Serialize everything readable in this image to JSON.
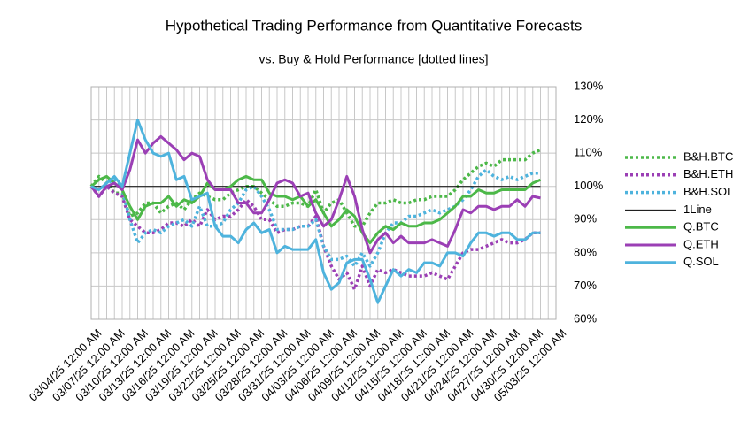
{
  "chart_data": {
    "type": "line",
    "title": "Hypothetical Trading Performance from Quantitative Forecasts",
    "subtitle": "vs. Buy & Hold Performance [dotted lines]",
    "categories": [
      "03/04/25 12:00 AM",
      null,
      null,
      "03/07/25 12:00 AM",
      null,
      null,
      "03/10/25 12:00 AM",
      null,
      null,
      "03/13/25 12:00 AM",
      null,
      null,
      "03/16/25 12:00 AM",
      null,
      null,
      "03/19/25 12:00 AM",
      null,
      null,
      "03/22/25 12:00 AM",
      null,
      null,
      "03/25/25 12:00 AM",
      null,
      null,
      "03/28/25 12:00 AM",
      null,
      null,
      "03/31/25 12:00 AM",
      null,
      null,
      "04/03/25 12:00 AM",
      null,
      null,
      "04/06/25 12:00 AM",
      null,
      null,
      "04/09/25 12:00 AM",
      null,
      null,
      "04/12/25 12:00 AM",
      null,
      null,
      "04/15/25 12:00 AM",
      null,
      null,
      "04/18/25 12:00 AM",
      null,
      null,
      "04/21/25 12:00 AM",
      null,
      null,
      "04/24/25 12:00 AM",
      null,
      null,
      "04/27/25 12:00 AM",
      null,
      null,
      "04/30/25 12:00 AM",
      null,
      null,
      "05/03/25 12:00 AM"
    ],
    "series": [
      {
        "name": "B&H.BTC",
        "color": "#4cb848",
        "style": "dotted",
        "values": [
          100,
          103,
          101,
          98,
          98,
          91,
          92,
          95,
          95,
          92,
          94,
          95,
          93,
          96,
          98,
          97,
          96,
          96,
          98,
          99,
          100,
          100,
          98,
          96,
          94,
          94,
          95,
          95,
          94,
          99,
          92,
          95,
          96,
          92,
          88,
          88,
          92,
          95,
          95,
          96,
          95,
          95,
          96,
          96,
          97,
          97,
          97,
          99,
          102,
          104,
          106,
          107,
          106,
          108,
          108,
          108,
          108,
          110,
          111,
          null,
          null
        ]
      },
      {
        "name": "B&H.ETH",
        "color": "#9b3fb5",
        "style": "dotted",
        "values": [
          100,
          97,
          100,
          98,
          97,
          90,
          88,
          86,
          86,
          87,
          89,
          89,
          88,
          90,
          88,
          93,
          90,
          91,
          91,
          93,
          96,
          94,
          90,
          90,
          86,
          87,
          87,
          88,
          88,
          91,
          82,
          76,
          72,
          74,
          69,
          76,
          70,
          75,
          74,
          75,
          74,
          73,
          73,
          73,
          74,
          73,
          72,
          76,
          80,
          81,
          81,
          82,
          83,
          84,
          83,
          83,
          84,
          86,
          86,
          null,
          null
        ]
      },
      {
        "name": "B&H.SOL",
        "color": "#4eb3dd",
        "style": "dotted",
        "values": [
          100,
          99,
          101,
          102,
          99,
          90,
          83,
          86,
          87,
          86,
          88,
          89,
          90,
          88,
          94,
          88,
          88,
          89,
          93,
          95,
          99,
          100,
          97,
          93,
          87,
          87,
          87,
          88,
          88,
          90,
          82,
          78,
          78,
          79,
          76,
          80,
          76,
          80,
          86,
          89,
          89,
          91,
          91,
          92,
          93,
          92,
          93,
          94,
          96,
          99,
          103,
          105,
          103,
          102,
          103,
          102,
          103,
          104,
          104,
          null,
          null
        ]
      },
      {
        "name": "1Line",
        "color": "#000000",
        "style": "thin",
        "values": [
          100,
          100,
          100,
          100,
          100,
          100,
          100,
          100,
          100,
          100,
          100,
          100,
          100,
          100,
          100,
          100,
          100,
          100,
          100,
          100,
          100,
          100,
          100,
          100,
          100,
          100,
          100,
          100,
          100,
          100,
          100,
          100,
          100,
          100,
          100,
          100,
          100,
          100,
          100,
          100,
          100,
          100,
          100,
          100,
          100,
          100,
          100,
          100,
          100,
          100,
          100,
          100,
          100,
          100,
          100,
          100,
          100,
          100,
          100,
          null,
          null
        ]
      },
      {
        "name": "Q.BTC",
        "color": "#4cb848",
        "style": "solid",
        "values": [
          100,
          102,
          103,
          101,
          99,
          94,
          90,
          94,
          95,
          95,
          97,
          94,
          96,
          95,
          97,
          101,
          99,
          99,
          100,
          102,
          103,
          102,
          102,
          98,
          97,
          97,
          96,
          97,
          94,
          96,
          92,
          88,
          90,
          93,
          91,
          86,
          83,
          86,
          88,
          87,
          89,
          88,
          88,
          89,
          89,
          90,
          92,
          94,
          97,
          97,
          99,
          98,
          98,
          99,
          99,
          99,
          99,
          101,
          102,
          null,
          null
        ]
      },
      {
        "name": "Q.ETH",
        "color": "#9b3fb5",
        "style": "solid",
        "values": [
          100,
          97,
          100,
          101,
          99,
          105,
          114,
          110,
          113,
          115,
          113,
          111,
          108,
          110,
          109,
          102,
          99,
          99,
          99,
          95,
          95,
          92,
          92,
          96,
          101,
          102,
          101,
          97,
          98,
          92,
          88,
          90,
          96,
          103,
          97,
          87,
          80,
          84,
          86,
          83,
          85,
          83,
          83,
          83,
          84,
          83,
          82,
          87,
          93,
          92,
          94,
          94,
          93,
          94,
          94,
          96,
          94,
          97,
          96.5,
          null,
          null
        ]
      },
      {
        "name": "Q.SOL",
        "color": "#4eb3dd",
        "style": "solid",
        "values": [
          100,
          99,
          101,
          103,
          100,
          110,
          120,
          114,
          110,
          109,
          110,
          102,
          103,
          96,
          97,
          98,
          88,
          85,
          85,
          83,
          87,
          89,
          86,
          87,
          80,
          82,
          81,
          81,
          81,
          84,
          74,
          69,
          71,
          77,
          78,
          78,
          72,
          65,
          70,
          75,
          73,
          75,
          74,
          77,
          77,
          76,
          80,
          80,
          79,
          83,
          86,
          86,
          85,
          86,
          86,
          84,
          84,
          86,
          86,
          null,
          null
        ]
      }
    ],
    "ylim": [
      60,
      130
    ],
    "yticks": [
      {
        "value": 60,
        "label": "60%"
      },
      {
        "value": 70,
        "label": "70%"
      },
      {
        "value": 80,
        "label": "80%"
      },
      {
        "value": 90,
        "label": "90%"
      },
      {
        "value": 100,
        "label": "100%"
      },
      {
        "value": 110,
        "label": "110%"
      },
      {
        "value": 120,
        "label": "120%"
      },
      {
        "value": 130,
        "label": "130%"
      }
    ],
    "grid": true,
    "legend": "right"
  }
}
